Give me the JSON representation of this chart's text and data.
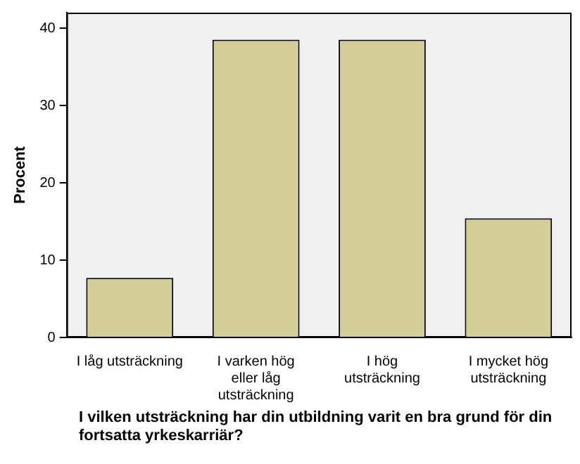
{
  "chart_data": {
    "type": "bar",
    "categories": [
      "I låg utsträckning",
      "I varken hög\neller låg\nutsträckning",
      "I hög\nutsträckning",
      "I mycket hög\nutsträckning"
    ],
    "values": [
      7.7,
      38.5,
      38.5,
      15.4
    ],
    "color": "#d3ce97",
    "ylabel": "Procent",
    "xlabel": "I vilken utsträckning har din utbildning varit en bra grund för din fortsatta yrkeskarriär?",
    "ylim": [
      0,
      42
    ],
    "yticks": [
      0,
      10,
      20,
      30,
      40
    ],
    "grid": false,
    "legend": false
  }
}
